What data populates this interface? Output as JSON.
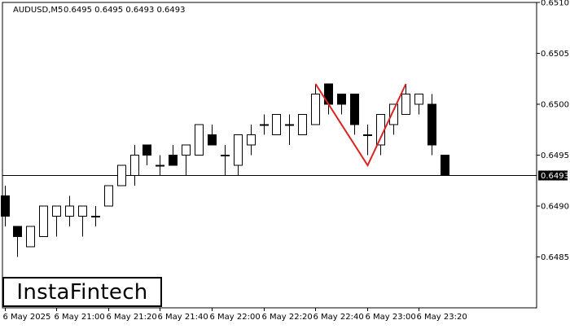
{
  "header": {
    "symbol": "AUDUSD,M5",
    "ohlc": "0.6495 0.6495 0.6493 0.6493"
  },
  "logo": {
    "text": "InstaFintech"
  },
  "colors": {
    "bull": "#ffffff",
    "bear": "#000000",
    "pattern": "#dd2222",
    "frame": "#000000"
  },
  "chart_data": {
    "type": "candlestick",
    "title": "AUDUSD,M5",
    "ylim": [
      0.648,
      0.651
    ],
    "y_ticks": [
      "0.6510",
      "0.6505",
      "0.6500",
      "0.6495",
      "0.6490",
      "0.6485"
    ],
    "x_ticks": [
      "6 May 2025",
      "6 May 21:00",
      "6 May 21:20",
      "6 May 21:40",
      "6 May 22:00",
      "6 May 22:20",
      "6 May 22:40",
      "6 May 23:00",
      "6 May 23:20"
    ],
    "current_price": "0.6493",
    "pattern": {
      "name": "Double Top",
      "points": [
        {
          "candle": 24,
          "price": 0.6502
        },
        {
          "candle": 28,
          "price": 0.6494
        },
        {
          "candle": 31,
          "price": 0.6502
        }
      ]
    },
    "candles": [
      {
        "o": 0.6491,
        "h": 0.6492,
        "l": 0.6488,
        "c": 0.6489
      },
      {
        "o": 0.6488,
        "h": 0.6488,
        "l": 0.6485,
        "c": 0.6487
      },
      {
        "o": 0.6486,
        "h": 0.6488,
        "l": 0.6486,
        "c": 0.6488
      },
      {
        "o": 0.6487,
        "h": 0.649,
        "l": 0.6487,
        "c": 0.649
      },
      {
        "o": 0.6489,
        "h": 0.649,
        "l": 0.6487,
        "c": 0.649
      },
      {
        "o": 0.6489,
        "h": 0.6491,
        "l": 0.6488,
        "c": 0.649
      },
      {
        "o": 0.6489,
        "h": 0.649,
        "l": 0.6487,
        "c": 0.649
      },
      {
        "o": 0.6489,
        "h": 0.649,
        "l": 0.6488,
        "c": 0.6489
      },
      {
        "o": 0.649,
        "h": 0.6492,
        "l": 0.649,
        "c": 0.6492
      },
      {
        "o": 0.6492,
        "h": 0.6494,
        "l": 0.6492,
        "c": 0.6494
      },
      {
        "o": 0.6493,
        "h": 0.6496,
        "l": 0.6492,
        "c": 0.6495
      },
      {
        "o": 0.6496,
        "h": 0.6496,
        "l": 0.6494,
        "c": 0.6495
      },
      {
        "o": 0.6494,
        "h": 0.6495,
        "l": 0.6493,
        "c": 0.6494
      },
      {
        "o": 0.6495,
        "h": 0.6496,
        "l": 0.6494,
        "c": 0.6494
      },
      {
        "o": 0.6495,
        "h": 0.6496,
        "l": 0.6493,
        "c": 0.6496
      },
      {
        "o": 0.6495,
        "h": 0.6498,
        "l": 0.6495,
        "c": 0.6498
      },
      {
        "o": 0.6497,
        "h": 0.6498,
        "l": 0.6496,
        "c": 0.6496
      },
      {
        "o": 0.6495,
        "h": 0.6496,
        "l": 0.6493,
        "c": 0.6495
      },
      {
        "o": 0.6494,
        "h": 0.6497,
        "l": 0.6493,
        "c": 0.6497
      },
      {
        "o": 0.6496,
        "h": 0.6498,
        "l": 0.6495,
        "c": 0.6497
      },
      {
        "o": 0.6498,
        "h": 0.6499,
        "l": 0.6497,
        "c": 0.6498
      },
      {
        "o": 0.6497,
        "h": 0.6499,
        "l": 0.6497,
        "c": 0.6499
      },
      {
        "o": 0.6498,
        "h": 0.6499,
        "l": 0.6496,
        "c": 0.6498
      },
      {
        "o": 0.6497,
        "h": 0.6499,
        "l": 0.6497,
        "c": 0.6499
      },
      {
        "o": 0.6498,
        "h": 0.6502,
        "l": 0.6498,
        "c": 0.6501
      },
      {
        "o": 0.6502,
        "h": 0.6502,
        "l": 0.6499,
        "c": 0.65
      },
      {
        "o": 0.6501,
        "h": 0.6501,
        "l": 0.6499,
        "c": 0.65
      },
      {
        "o": 0.6501,
        "h": 0.6501,
        "l": 0.6497,
        "c": 0.6498
      },
      {
        "o": 0.6497,
        "h": 0.6498,
        "l": 0.6495,
        "c": 0.6497
      },
      {
        "o": 0.6496,
        "h": 0.6499,
        "l": 0.6495,
        "c": 0.6499
      },
      {
        "o": 0.6498,
        "h": 0.65,
        "l": 0.6497,
        "c": 0.65
      },
      {
        "o": 0.6499,
        "h": 0.6502,
        "l": 0.6499,
        "c": 0.6501
      },
      {
        "o": 0.65,
        "h": 0.6501,
        "l": 0.6499,
        "c": 0.6501
      },
      {
        "o": 0.65,
        "h": 0.6501,
        "l": 0.6495,
        "c": 0.6496
      },
      {
        "o": 0.6495,
        "h": 0.6495,
        "l": 0.6493,
        "c": 0.6493
      }
    ]
  }
}
